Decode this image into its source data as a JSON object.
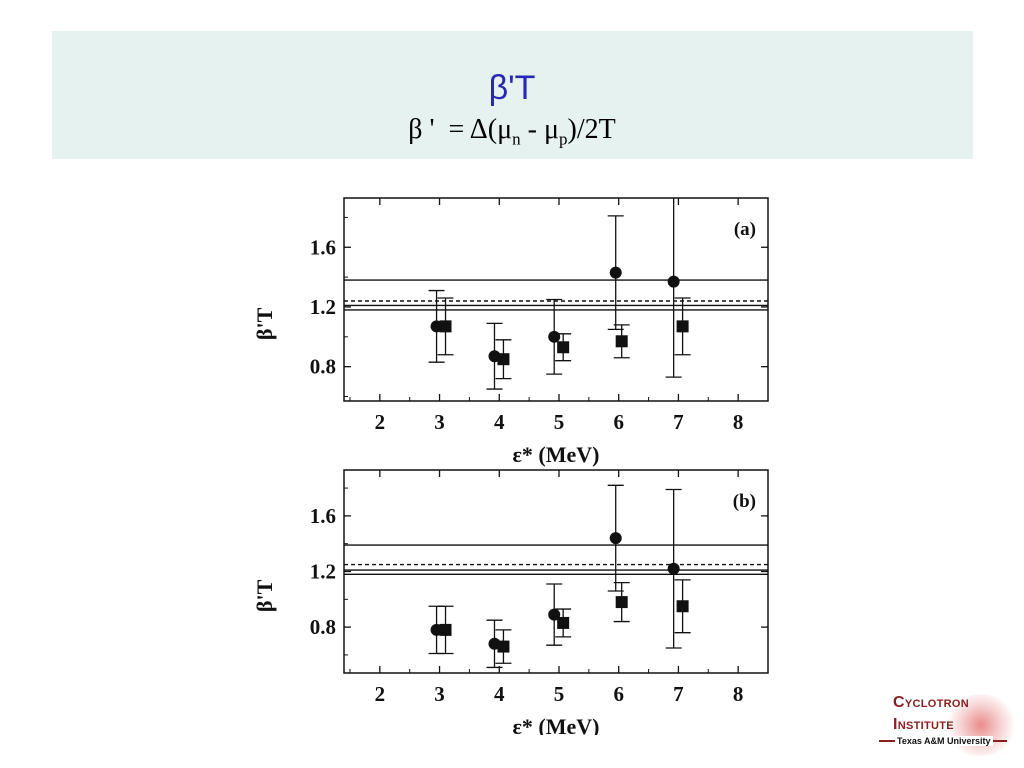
{
  "slide": {
    "title": "β'T",
    "formula": {
      "part1": "β '  = Δ(μ",
      "sub1": "n",
      "part2": " - μ",
      "sub2": "p",
      "part3": ")/2T"
    }
  },
  "logo": {
    "line1": "Cyclotron",
    "line2": "Institute",
    "subtitle": "Texas A&M University"
  },
  "chart_data": [
    {
      "type": "scatter",
      "panel_label": "(a)",
      "xlabel": "ε* (MeV)",
      "ylabel": "β'T",
      "xlim": [
        1.4,
        8.5
      ],
      "ylim": [
        0.57,
        1.93
      ],
      "xticks": [
        2,
        3,
        4,
        5,
        6,
        7,
        8
      ],
      "yticks": [
        0.8,
        1.2,
        1.6
      ],
      "series": [
        {
          "marker": "circle",
          "x": [
            2.95,
            3.92,
            4.92,
            5.95,
            6.92
          ],
          "y": [
            1.07,
            0.87,
            1.0,
            1.43,
            1.37
          ],
          "yerr": [
            0.24,
            0.22,
            0.25,
            0.38,
            0.64
          ]
        },
        {
          "marker": "square",
          "x": [
            3.1,
            4.07,
            5.07,
            6.05,
            7.07
          ],
          "y": [
            1.07,
            0.85,
            0.93,
            0.97,
            1.07
          ],
          "yerr": [
            0.19,
            0.13,
            0.09,
            0.11,
            0.19
          ]
        }
      ],
      "reference_lines": [
        {
          "y": 1.38,
          "style": "solid"
        },
        {
          "y": 1.24,
          "style": "dashed"
        },
        {
          "y": 1.21,
          "style": "solid"
        },
        {
          "y": 1.18,
          "style": "solid"
        }
      ]
    },
    {
      "type": "scatter",
      "panel_label": "(b)",
      "xlabel": "ε* (MeV)",
      "ylabel": "β'T",
      "xlim": [
        1.4,
        8.5
      ],
      "ylim": [
        0.47,
        1.93
      ],
      "xticks": [
        2,
        3,
        4,
        5,
        6,
        7,
        8
      ],
      "yticks": [
        0.8,
        1.2,
        1.6
      ],
      "series": [
        {
          "marker": "circle",
          "x": [
            2.95,
            3.92,
            4.92,
            5.95,
            6.92
          ],
          "y": [
            0.78,
            0.68,
            0.89,
            1.44,
            1.22
          ],
          "yerr": [
            0.17,
            0.17,
            0.22,
            0.38,
            0.57
          ]
        },
        {
          "marker": "square",
          "x": [
            3.1,
            4.07,
            5.07,
            6.05,
            7.07
          ],
          "y": [
            0.78,
            0.66,
            0.83,
            0.98,
            0.95
          ],
          "yerr": [
            0.17,
            0.12,
            0.1,
            0.14,
            0.19
          ]
        }
      ],
      "reference_lines": [
        {
          "y": 1.39,
          "style": "solid"
        },
        {
          "y": 1.25,
          "style": "dashed"
        },
        {
          "y": 1.21,
          "style": "solid"
        },
        {
          "y": 1.18,
          "style": "solid"
        }
      ]
    }
  ]
}
